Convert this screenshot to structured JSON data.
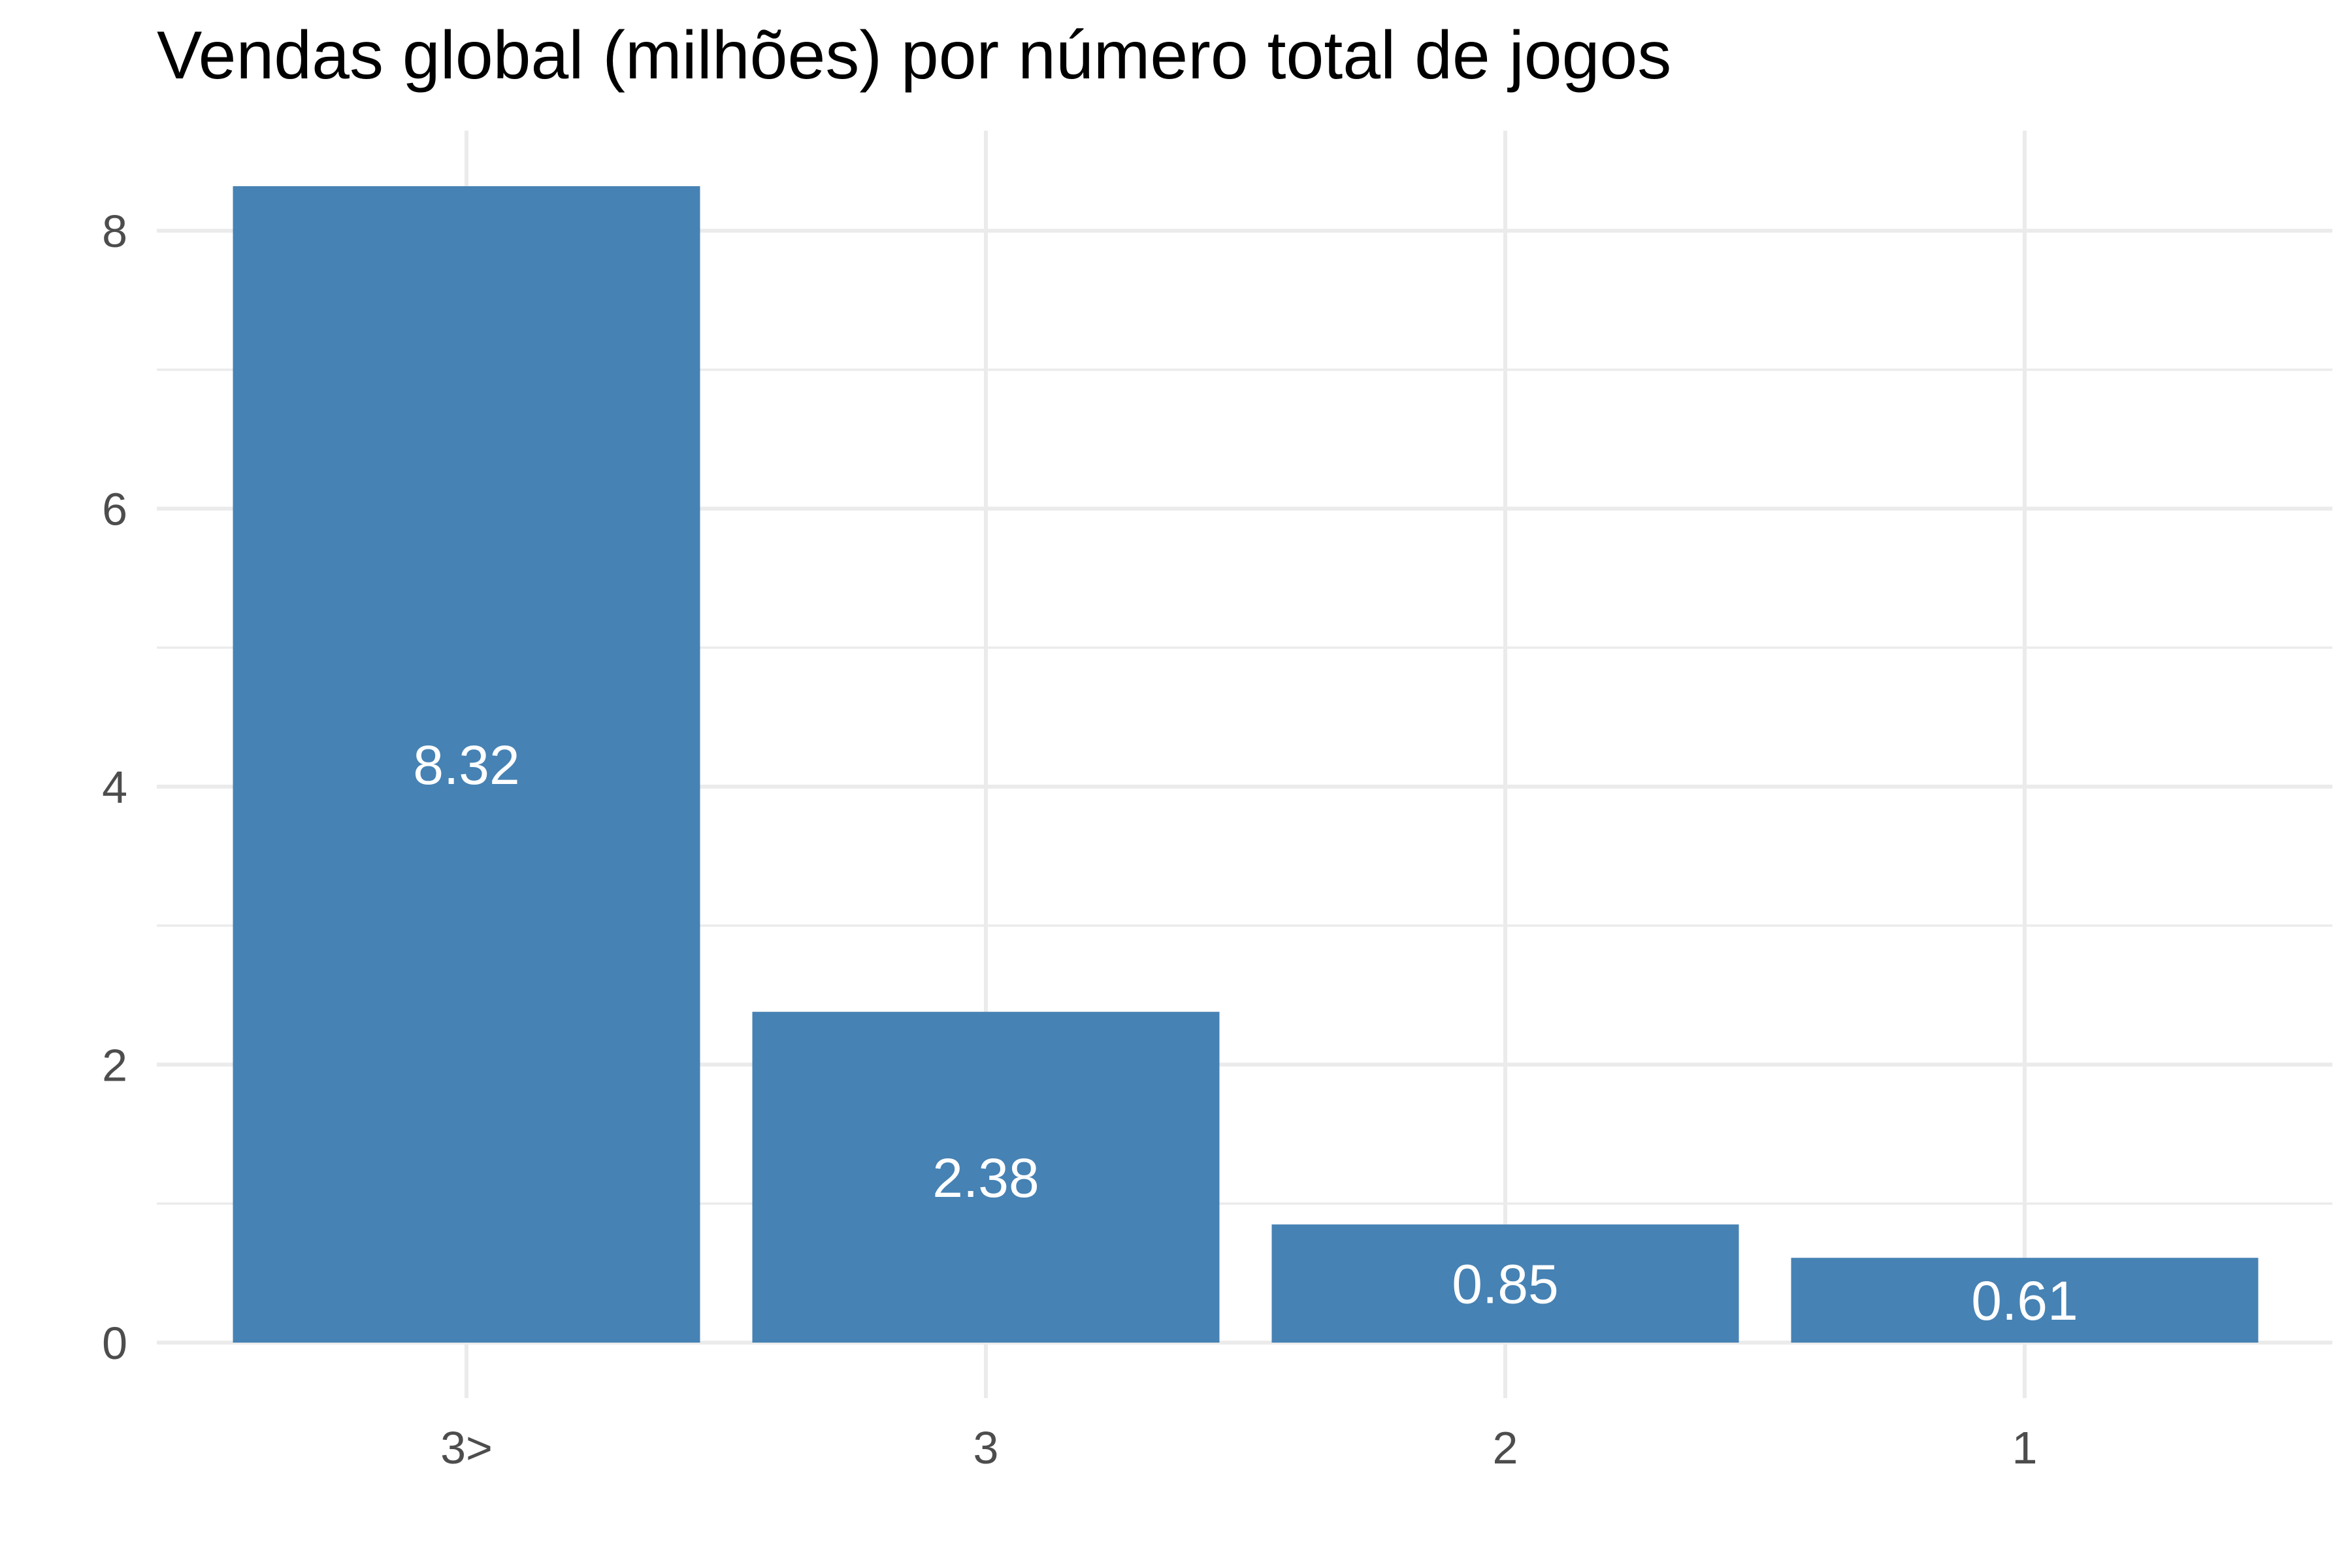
{
  "chart_data": {
    "type": "bar",
    "title": "Vendas global (milhões) por número total de jogos",
    "categories": [
      "3>",
      "3",
      "2",
      "1"
    ],
    "values": [
      8.32,
      2.38,
      0.85,
      0.61
    ],
    "labels": [
      "8.32",
      "2.38",
      "0.85",
      "0.61"
    ],
    "xlabel": "",
    "ylabel": "",
    "ylim": [
      0,
      8.32
    ],
    "yticks": [
      0,
      2,
      4,
      6,
      8
    ],
    "ytick_labels": [
      "0",
      "2",
      "4",
      "6",
      "8"
    ],
    "grid": true,
    "bar_color": "#4682b4",
    "grid_color": "#ebebeb",
    "label_color": "#ffffff"
  }
}
